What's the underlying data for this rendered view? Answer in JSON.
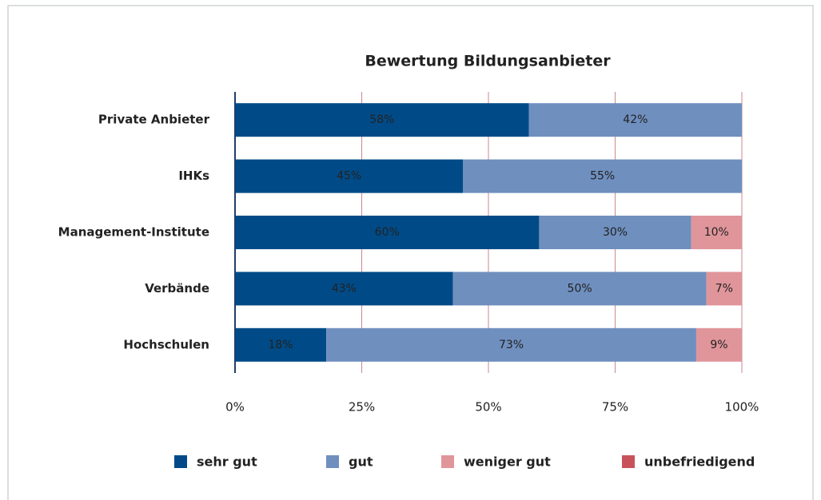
{
  "chart_data": {
    "type": "stacked-bar-horizontal",
    "title": "Bewertung Bildungsanbieter",
    "categories": [
      "Private Anbieter",
      "IHKs",
      "Management-Institute",
      "Verbände",
      "Hochschulen"
    ],
    "series": [
      {
        "name": "sehr gut",
        "color": "#004b87",
        "values": [
          58,
          45,
          60,
          43,
          18
        ],
        "value_labels": [
          "58%",
          "45%",
          "60%",
          "43%",
          "18%"
        ]
      },
      {
        "name": "gut",
        "color": "#6f8fbf",
        "values": [
          42,
          55,
          30,
          50,
          73
        ],
        "value_labels": [
          "42%",
          "55%",
          "30%",
          "50%",
          "73%"
        ]
      },
      {
        "name": "weniger gut",
        "color": "#e0959b",
        "values": [
          0,
          0,
          10,
          7,
          9
        ],
        "value_labels": [
          null,
          null,
          "10%",
          "7%",
          "9%"
        ]
      },
      {
        "name": "unbefriedigend",
        "color": "#c8525c",
        "values": [
          0,
          0,
          0,
          0,
          0
        ],
        "value_labels": [
          null,
          null,
          null,
          null,
          null
        ]
      }
    ],
    "xlim": [
      0,
      100
    ],
    "xticks": [
      {
        "value": 0,
        "label": "0%"
      },
      {
        "value": 25,
        "label": "25%"
      },
      {
        "value": 50,
        "label": "50%"
      },
      {
        "value": 75,
        "label": "75%"
      },
      {
        "value": 100,
        "label": "100%"
      }
    ],
    "grid": true,
    "legend": "bottom"
  }
}
